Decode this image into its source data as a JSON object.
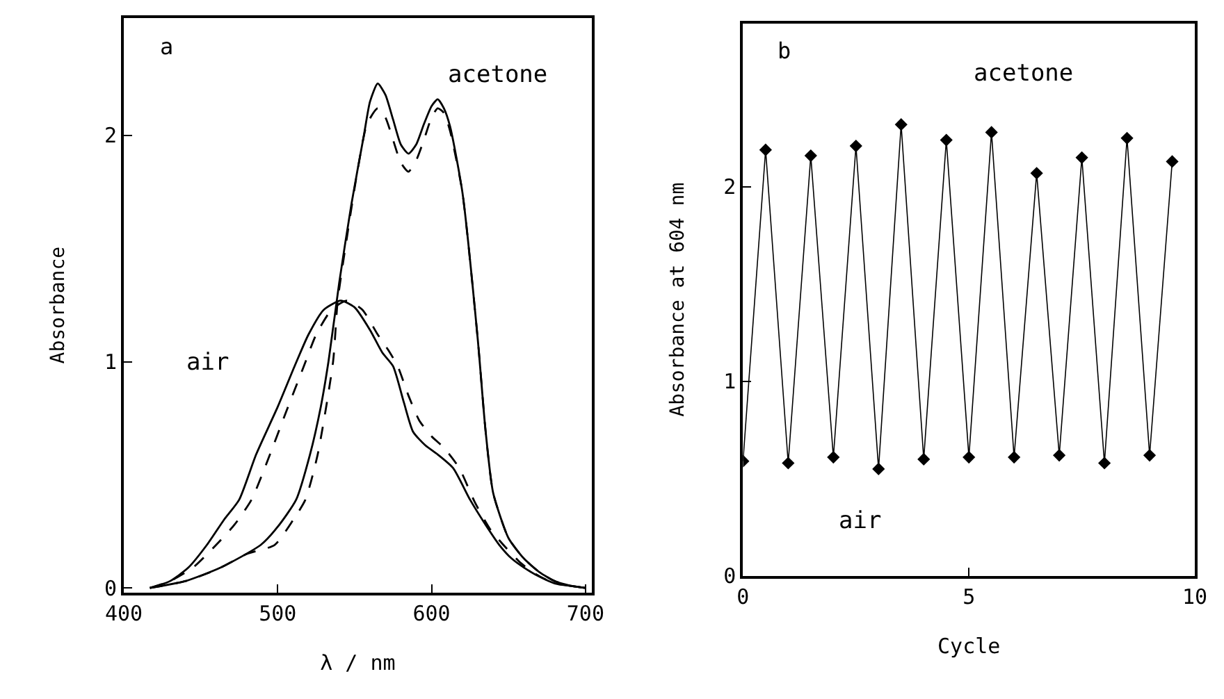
{
  "chart_data": [
    {
      "type": "line",
      "xlabel": "λ / nm",
      "ylabel": "Absorbance",
      "xlim": [
        400,
        704
      ],
      "ylim": [
        -0.02,
        2.52
      ],
      "xticks": [
        400,
        500,
        600,
        700
      ],
      "yticks": [
        0,
        1,
        2
      ],
      "annotations": [
        "a",
        "acetone",
        "air"
      ],
      "series": [
        {
          "color": "#000000",
          "line_style": "solid",
          "x": [
            417,
            440,
            463,
            489,
            500,
            512,
            521,
            528,
            533,
            540,
            548,
            556,
            560,
            565,
            570,
            575,
            580,
            585,
            590,
            595,
            600,
            604,
            608,
            612,
            620,
            630,
            635,
            640,
            650,
            660,
            670,
            680,
            690,
            700
          ],
          "values": [
            0,
            0.03,
            0.09,
            0.19,
            0.27,
            0.39,
            0.59,
            0.8,
            1.0,
            1.35,
            1.7,
            2.0,
            2.15,
            2.23,
            2.18,
            2.07,
            1.96,
            1.92,
            1.96,
            2.05,
            2.13,
            2.16,
            2.12,
            2.04,
            1.75,
            1.1,
            0.7,
            0.42,
            0.22,
            0.13,
            0.07,
            0.03,
            0.01,
            0
          ]
        },
        {
          "color": "#000000",
          "line_style": "dashed",
          "x": [
            417,
            440,
            460,
            480,
            498,
            510,
            518,
            526,
            536,
            539,
            545,
            552,
            558,
            565,
            570,
            575,
            580,
            585,
            590,
            595,
            600,
            604,
            608,
            612,
            620,
            630,
            635,
            640,
            650,
            660,
            670,
            680,
            690,
            700
          ],
          "values": [
            0,
            0.03,
            0.08,
            0.15,
            0.19,
            0.3,
            0.39,
            0.59,
            1.0,
            1.27,
            1.55,
            1.85,
            2.05,
            2.12,
            2.08,
            1.98,
            1.88,
            1.84,
            1.89,
            1.98,
            2.08,
            2.12,
            2.1,
            2.02,
            1.75,
            1.1,
            0.7,
            0.42,
            0.22,
            0.13,
            0.07,
            0.03,
            0.01,
            0
          ]
        },
        {
          "color": "#000000",
          "line_style": "solid",
          "x": [
            417,
            430,
            442,
            454,
            465,
            475,
            486,
            500,
            511,
            520,
            530,
            541,
            550,
            560,
            568,
            575,
            582,
            588,
            596,
            604,
            614,
            625,
            635,
            644,
            652,
            660,
            670,
            680,
            689,
            700
          ],
          "values": [
            0,
            0.03,
            0.09,
            0.19,
            0.3,
            0.39,
            0.59,
            0.8,
            0.98,
            1.12,
            1.23,
            1.27,
            1.24,
            1.14,
            1.04,
            0.98,
            0.82,
            0.69,
            0.63,
            0.59,
            0.53,
            0.39,
            0.28,
            0.19,
            0.13,
            0.09,
            0.05,
            0.02,
            0.01,
            0
          ]
        },
        {
          "color": "#000000",
          "line_style": "dashed",
          "x": [
            417,
            430,
            445,
            460,
            472,
            483,
            495,
            505,
            517,
            525,
            535,
            545,
            555,
            565,
            572,
            578,
            585,
            592,
            600,
            608,
            618,
            628,
            638,
            648,
            658,
            668,
            680,
            690,
            700
          ],
          "values": [
            0,
            0.03,
            0.09,
            0.19,
            0.28,
            0.39,
            0.59,
            0.77,
            0.98,
            1.12,
            1.23,
            1.27,
            1.23,
            1.12,
            1.05,
            0.98,
            0.85,
            0.74,
            0.67,
            0.62,
            0.53,
            0.38,
            0.26,
            0.18,
            0.11,
            0.06,
            0.02,
            0.01,
            0
          ]
        }
      ]
    },
    {
      "type": "line",
      "xlabel": "Cycle",
      "ylabel": "Absorbance at 604 nm",
      "xlim": [
        0,
        10
      ],
      "ylim": [
        0,
        2.84
      ],
      "xticks": [
        0,
        5,
        10
      ],
      "yticks": [
        0,
        1,
        2
      ],
      "marker": "diamond",
      "annotations": [
        "b",
        "acetone",
        "air"
      ],
      "series": [
        {
          "color": "#000000",
          "line_style": "solid",
          "x": [
            0,
            0.5,
            1,
            1.5,
            2,
            2.5,
            3,
            3.5,
            4,
            4.5,
            5,
            5.5,
            6,
            6.5,
            7,
            7.5,
            8,
            8.5,
            9,
            9.5
          ],
          "values": [
            0.59,
            2.19,
            0.58,
            2.16,
            0.61,
            2.21,
            0.55,
            2.32,
            0.6,
            2.24,
            0.61,
            2.28,
            0.61,
            2.07,
            0.62,
            2.15,
            0.58,
            2.25,
            0.62,
            2.13
          ]
        }
      ]
    }
  ]
}
